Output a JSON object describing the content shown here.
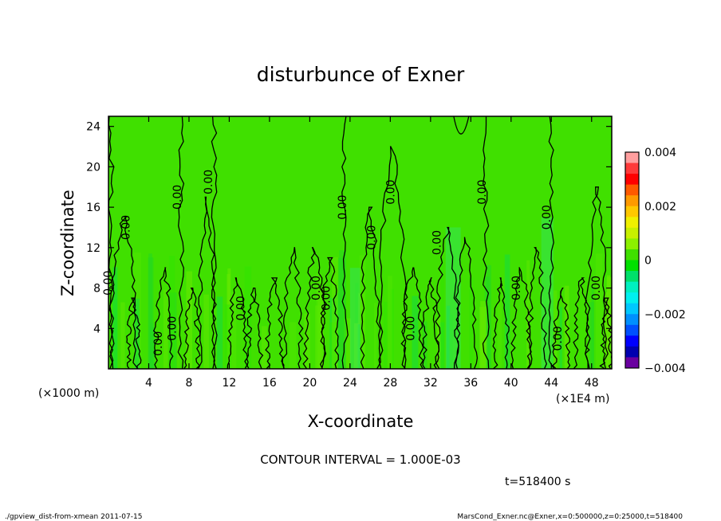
{
  "chart_data": {
    "type": "heatmap",
    "title": "disturbunce of Exner",
    "xlabel": "X-coordinate",
    "ylabel": "Z-coordinate",
    "x_unit": "(×1000 m)",
    "x_multiplier": "(×1E4 m)",
    "xlim": [
      0,
      50
    ],
    "ylim": [
      0,
      25
    ],
    "x_ticks": [
      "4",
      "8",
      "12",
      "16",
      "20",
      "24",
      "28",
      "32",
      "36",
      "40",
      "44",
      "48"
    ],
    "y_ticks": [
      "4",
      "8",
      "12",
      "16",
      "20",
      "24"
    ],
    "colorbar": {
      "range": [
        -0.004,
        0.004
      ],
      "tick_labels": [
        "0.004",
        "0.002",
        "0",
        "−0.002",
        "−0.004"
      ],
      "colors": [
        "#ff9f9f",
        "#ff3a3a",
        "#ff0000",
        "#ff5a00",
        "#ff9a00",
        "#ffc800",
        "#f0f000",
        "#c8f000",
        "#8cf000",
        "#40e000",
        "#00e000",
        "#00e06a",
        "#00f0c0",
        "#00f0f0",
        "#00c8ff",
        "#0090ff",
        "#0050ff",
        "#0000ff",
        "#0000b0",
        "#6a00a0"
      ]
    },
    "contour_interval_label": "CONTOUR INTERVAL = 1.000E-03",
    "contour_labels": [
      "0.00"
    ],
    "time_label": "t=518400 s"
  },
  "footer": {
    "left": "./gpview_dist-from-xmean  2011-07-15",
    "right": "MarsCond_Exner.nc@Exner,x=0:500000,z=0:25000,t=518400"
  }
}
